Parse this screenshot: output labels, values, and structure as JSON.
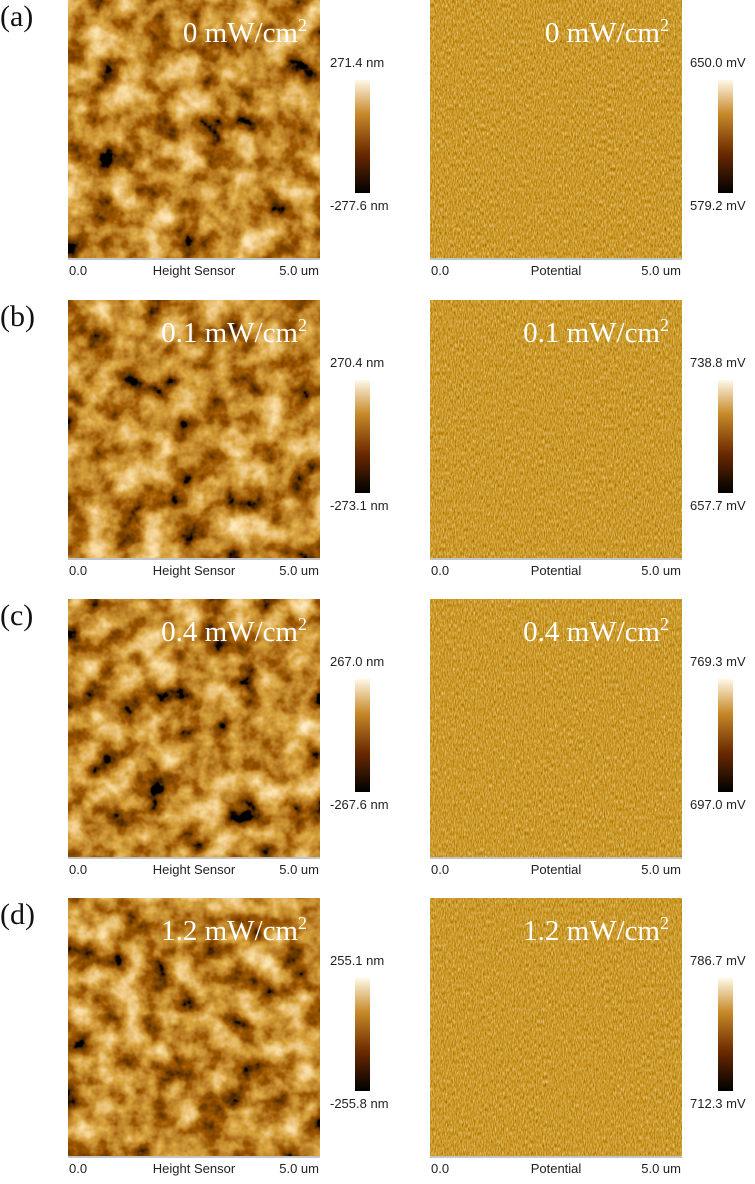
{
  "unit": "mW/cm",
  "unit_exp": "2",
  "rows": [
    {
      "label": "(a)",
      "power": "0",
      "height": {
        "max": "271.4 nm",
        "min": "-277.6 nm",
        "x_start": "0.0",
        "x_label": "Height Sensor",
        "x_end": "5.0 um"
      },
      "potential": {
        "max": "650.0 mV",
        "min": "579.2 mV",
        "x_start": "0.0",
        "x_label": "Potential",
        "x_end": "5.0 um"
      }
    },
    {
      "label": "(b)",
      "power": "0.1",
      "height": {
        "max": "270.4 nm",
        "min": "-273.1 nm",
        "x_start": "0.0",
        "x_label": "Height Sensor",
        "x_end": "5.0 um"
      },
      "potential": {
        "max": "738.8 mV",
        "min": "657.7 mV",
        "x_start": "0.0",
        "x_label": "Potential",
        "x_end": "5.0 um"
      }
    },
    {
      "label": "(c)",
      "power": "0.4",
      "height": {
        "max": "267.0 nm",
        "min": "-267.6 nm",
        "x_start": "0.0",
        "x_label": "Height Sensor",
        "x_end": "5.0 um"
      },
      "potential": {
        "max": "769.3 mV",
        "min": "697.0 mV",
        "x_start": "0.0",
        "x_label": "Potential",
        "x_end": "5.0 um"
      }
    },
    {
      "label": "(d)",
      "power": "1.2",
      "height": {
        "max": "255.1 nm",
        "min": "-255.8 nm",
        "x_start": "0.0",
        "x_label": "Height Sensor",
        "x_end": "5.0 um"
      },
      "potential": {
        "max": "786.7 mV",
        "min": "712.3 mV",
        "x_start": "0.0",
        "x_label": "Potential",
        "x_end": "5.0 um"
      }
    }
  ]
}
